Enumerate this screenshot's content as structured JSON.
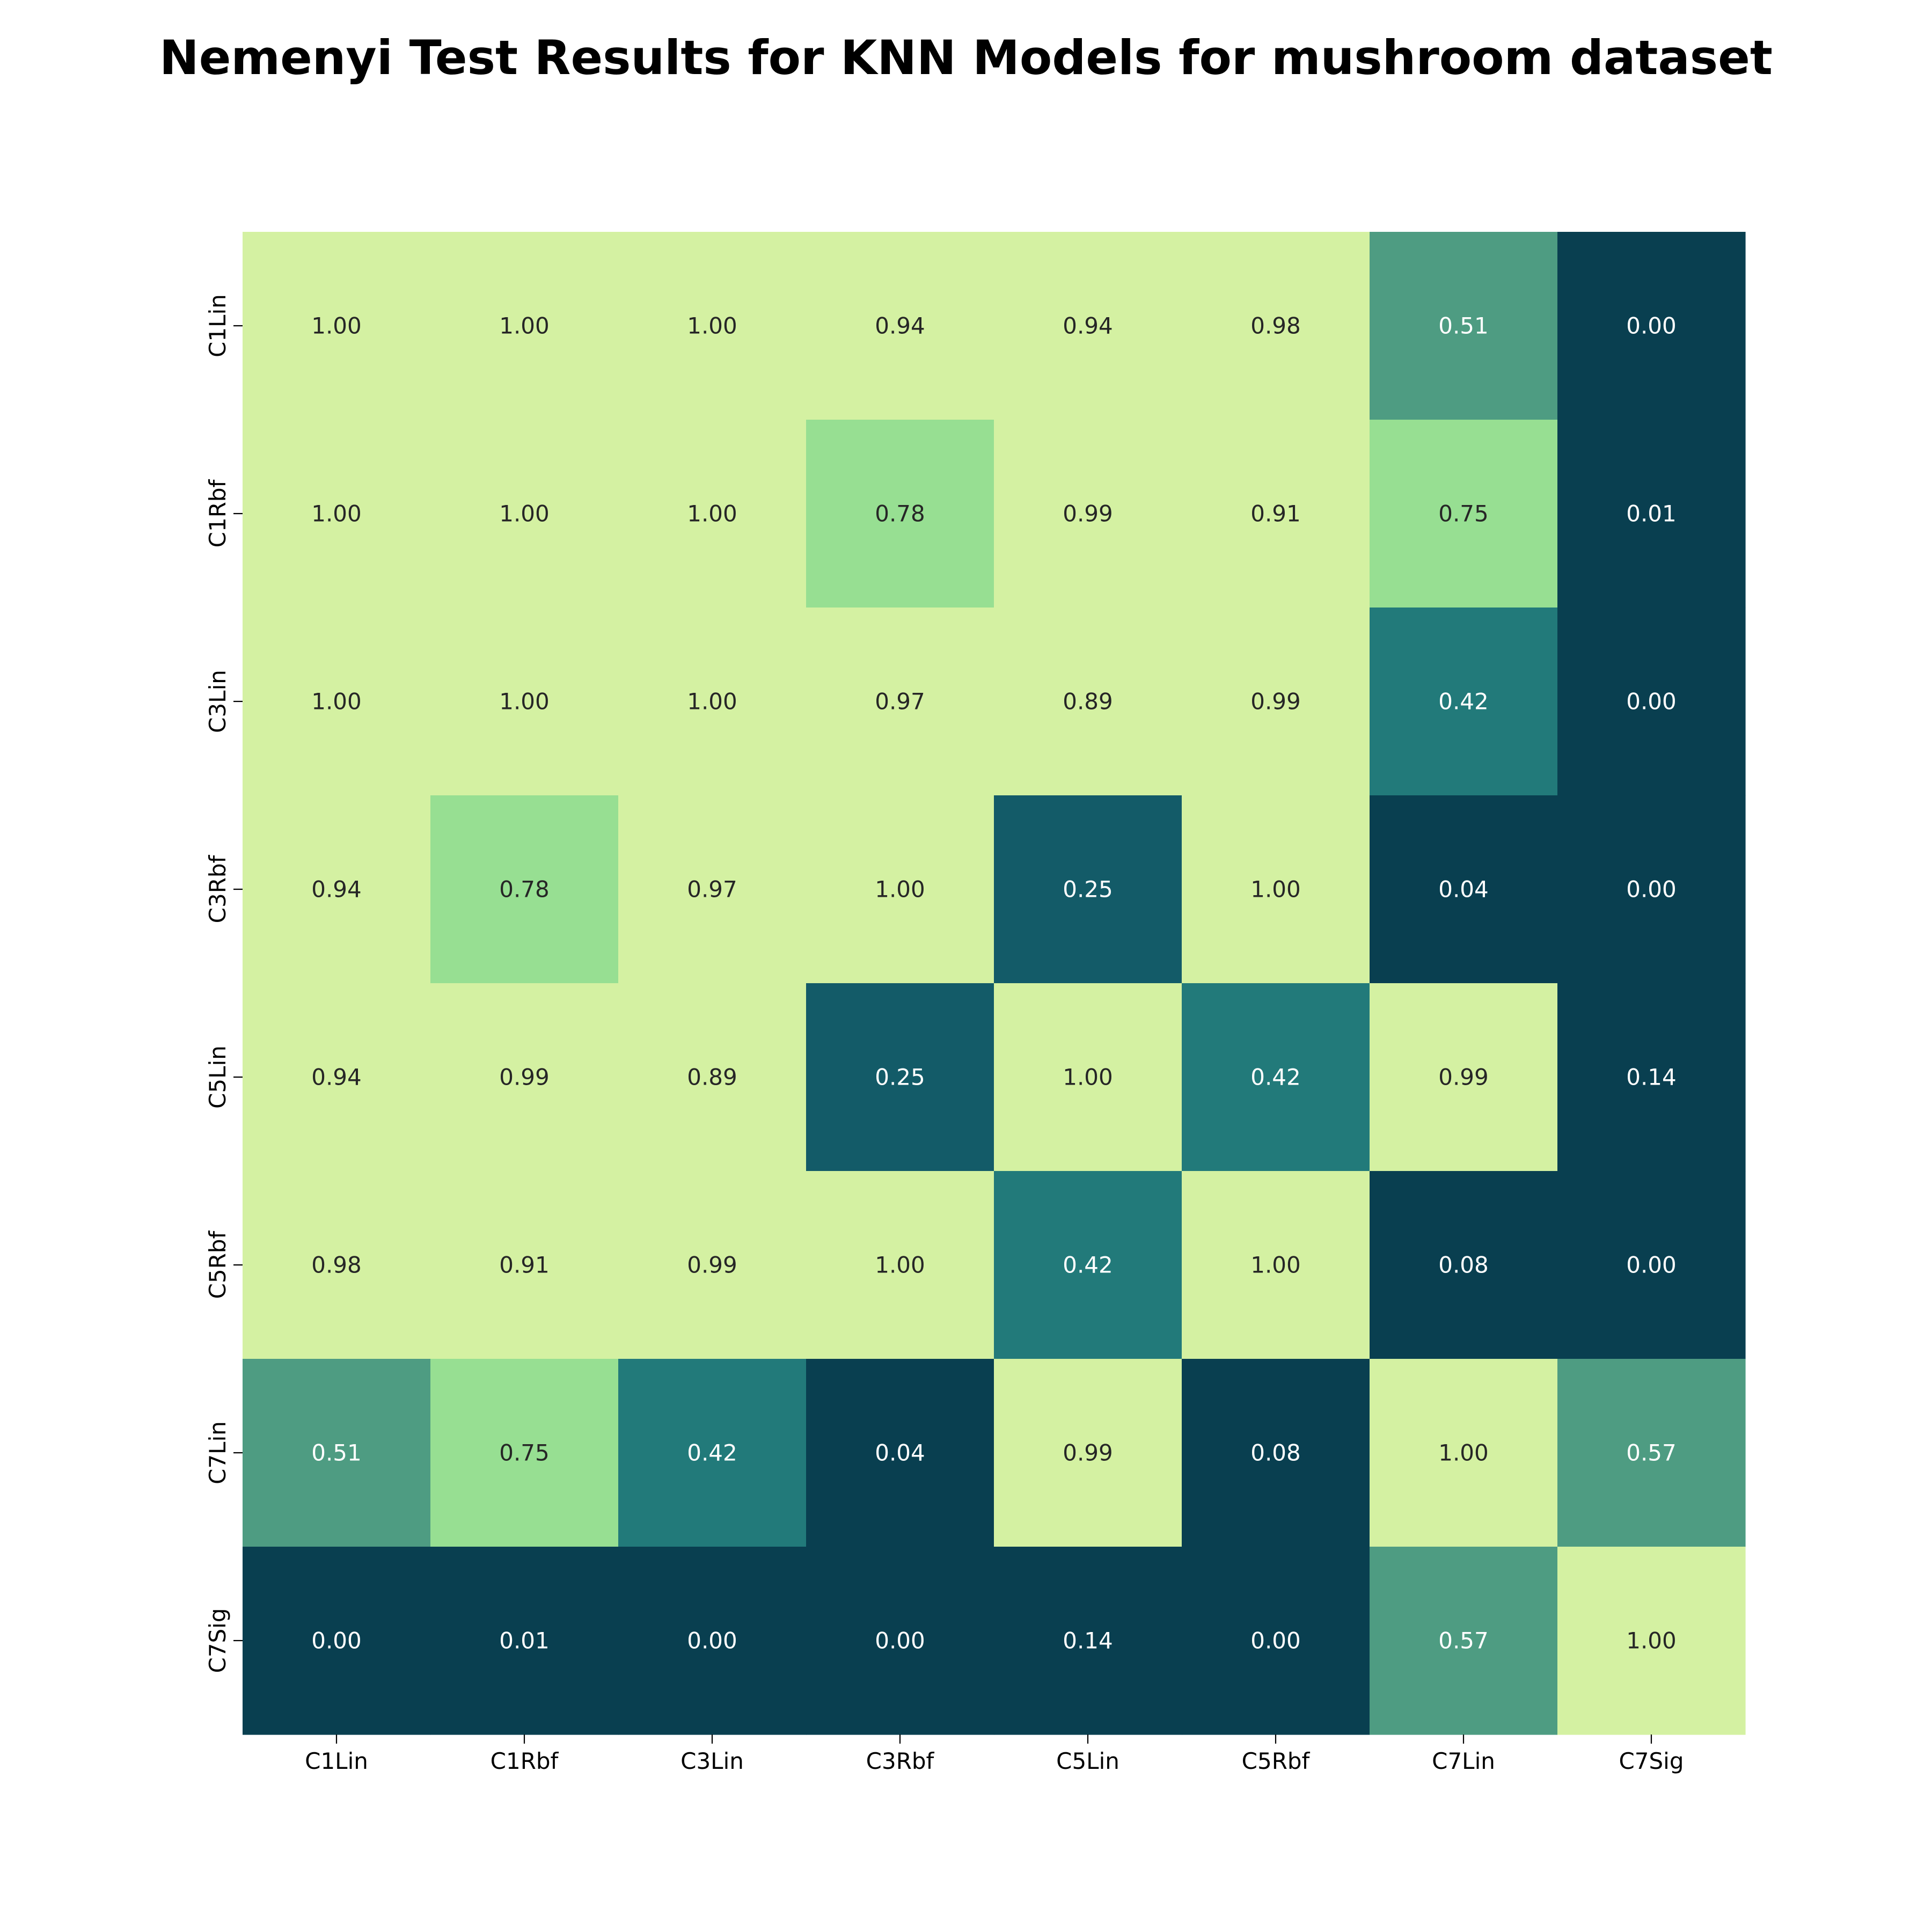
{
  "chart_data": {
    "type": "heatmap",
    "title": "Nemenyi Test Results for KNN Models for mushroom dataset",
    "xlabel": "",
    "ylabel": "",
    "x_categories": [
      "C1Lin",
      "C1Rbf",
      "C3Lin",
      "C3Rbf",
      "C5Lin",
      "C5Rbf",
      "C7Lin",
      "C7Sig"
    ],
    "y_categories": [
      "C1Lin",
      "C1Rbf",
      "C3Lin",
      "C3Rbf",
      "C5Lin",
      "C5Rbf",
      "C7Lin",
      "C7Sig"
    ],
    "values": [
      [
        1.0,
        1.0,
        1.0,
        0.94,
        0.94,
        0.98,
        0.51,
        0.0
      ],
      [
        1.0,
        1.0,
        1.0,
        0.78,
        0.99,
        0.91,
        0.75,
        0.01
      ],
      [
        1.0,
        1.0,
        1.0,
        0.97,
        0.89,
        0.99,
        0.42,
        0.0
      ],
      [
        0.94,
        0.78,
        0.97,
        1.0,
        0.25,
        1.0,
        0.04,
        0.0
      ],
      [
        0.94,
        0.99,
        0.89,
        0.25,
        1.0,
        0.42,
        0.99,
        0.14
      ],
      [
        0.98,
        0.91,
        0.99,
        1.0,
        0.42,
        1.0,
        0.08,
        0.0
      ],
      [
        0.51,
        0.75,
        0.42,
        0.04,
        0.99,
        0.08,
        1.0,
        0.57
      ],
      [
        0.0,
        0.01,
        0.0,
        0.0,
        0.14,
        0.0,
        0.57,
        1.0
      ]
    ],
    "value_format": "0.00",
    "colorbar": false,
    "colors": {
      "very_high": "#d4f1a2",
      "high": "#97df92",
      "mid_high": "#4e9c82",
      "mid": "#227a7a",
      "low": "#135b68",
      "very_low": "#093f50",
      "text_light": "#ffffff",
      "text_dark": "#262626"
    }
  }
}
